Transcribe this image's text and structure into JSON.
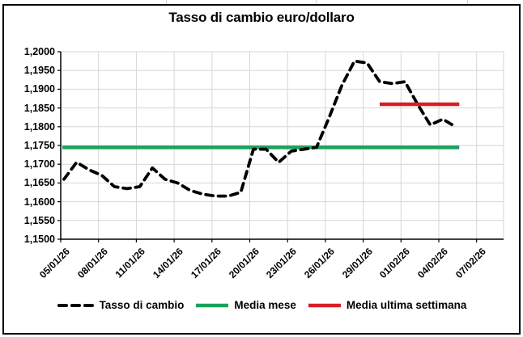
{
  "window": {
    "background": "#ffffff",
    "frame_border_color": "#000000",
    "gridline_color": "#d6d6d6",
    "axis_color": "#000000"
  },
  "chart_data": {
    "type": "line",
    "title": "Tasso di cambio euro/dollaro",
    "grid": true,
    "y_axis": {
      "min": 1.15,
      "max": 1.2,
      "step": 0.005,
      "tick_labels": [
        "1,2000",
        "1,1950",
        "1,1900",
        "1,1850",
        "1,1800",
        "1,1750",
        "1,1700",
        "1,1650",
        "1,1600",
        "1,1550",
        "1,1500"
      ]
    },
    "x_axis": {
      "tick_labels": [
        "05/01/26",
        "08/01/26",
        "11/01/26",
        "14/01/26",
        "17/01/26",
        "20/01/26",
        "23/01/26",
        "26/01/26",
        "29/01/26",
        "01/02/26",
        "04/02/26",
        "07/02/26"
      ],
      "days_per_tick": 3,
      "total_days_span": 33,
      "label_rotation_deg": 45
    },
    "series": [
      {
        "name": "Tasso di cambio",
        "style": "dashed",
        "color": "#000000",
        "start_date": "05/01/26",
        "end_date": "05/02/26",
        "values": [
          1.166,
          1.1705,
          1.1685,
          1.167,
          1.164,
          1.1635,
          1.164,
          1.169,
          1.166,
          1.165,
          1.163,
          1.162,
          1.1615,
          1.1615,
          1.1625,
          1.174,
          1.174,
          1.1705,
          1.1735,
          1.174,
          1.1745,
          1.1825,
          1.191,
          1.1975,
          1.197,
          1.192,
          1.1915,
          1.192,
          1.186,
          1.1805,
          1.182,
          1.18
        ]
      },
      {
        "name": "Media mese",
        "style": "solid",
        "color": "#1aa25d",
        "value": 1.1745,
        "start_day": 0,
        "end_day": 31.3
      },
      {
        "name": "Media ultima settimana",
        "style": "solid",
        "color": "#d61f26",
        "value": 1.186,
        "start_day": 25,
        "end_day": 31.3
      }
    ],
    "legend": {
      "position": "bottom",
      "items": [
        {
          "label": "Tasso di cambio",
          "color": "#000000",
          "style": "dashed"
        },
        {
          "label": "Media mese",
          "color": "#1aa25d",
          "style": "solid"
        },
        {
          "label": "Media ultima settimana",
          "color": "#d61f26",
          "style": "solid"
        }
      ]
    }
  }
}
